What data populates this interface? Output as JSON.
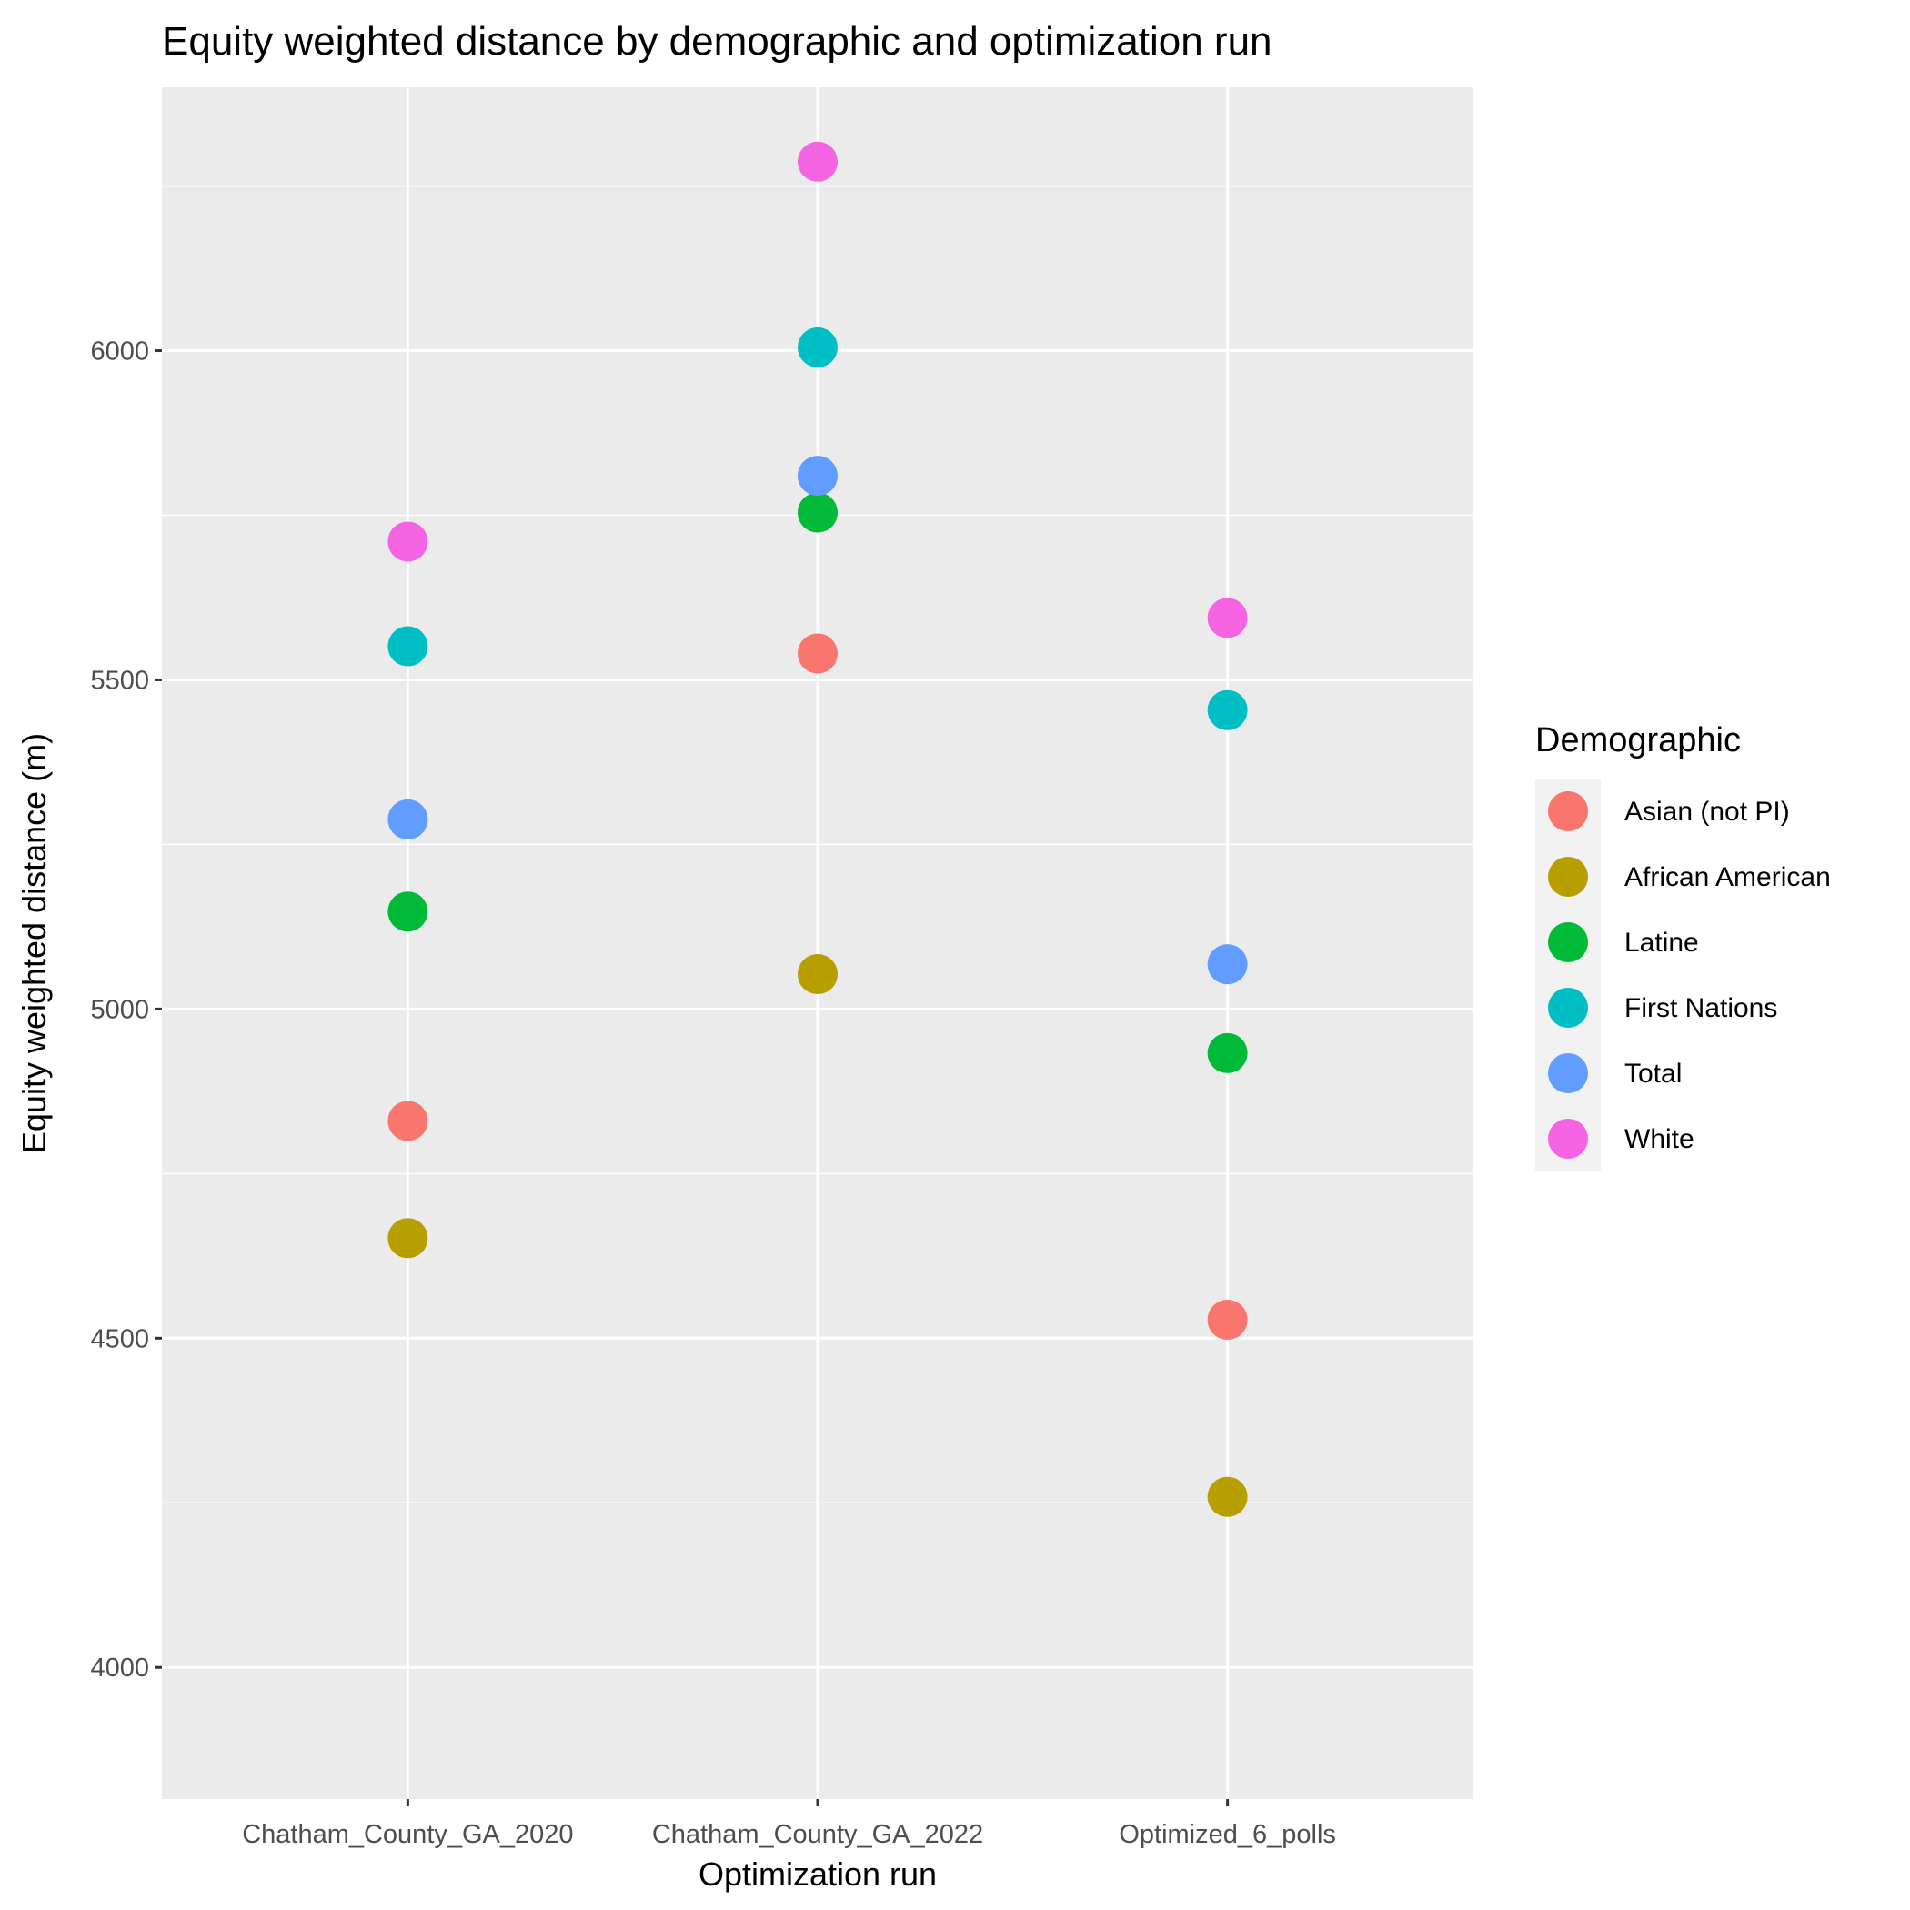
{
  "chart_data": {
    "type": "scatter",
    "title": "Equity weighted distance by demographic and optimization run",
    "xlabel": "Optimization run",
    "ylabel": "Equity weighted distance (m)",
    "categories": [
      "Chatham_County_GA_2020",
      "Chatham_County_GA_2022",
      "Optimized_6_polls"
    ],
    "ylim": [
      3800,
      6400
    ],
    "yticks": [
      4000,
      4500,
      5000,
      5500,
      6000
    ],
    "grid": true,
    "legend": {
      "title": "Demographic",
      "position": "right"
    },
    "series": [
      {
        "name": "Asian (not PI)",
        "color": "#F8766D",
        "values": [
          4830,
          5540,
          4528
        ]
      },
      {
        "name": "African American",
        "color": "#B79F00",
        "values": [
          4652,
          5053,
          4259
        ]
      },
      {
        "name": "Latine",
        "color": "#00BA38",
        "values": [
          5148,
          5754,
          4933
        ]
      },
      {
        "name": "First Nations",
        "color": "#00BFC4",
        "values": [
          5551,
          6005,
          5454
        ]
      },
      {
        "name": "Total",
        "color": "#619CFF",
        "values": [
          5288,
          5810,
          5068
        ]
      },
      {
        "name": "White",
        "color": "#F564E3",
        "values": [
          5710,
          6287,
          5594
        ]
      }
    ]
  }
}
